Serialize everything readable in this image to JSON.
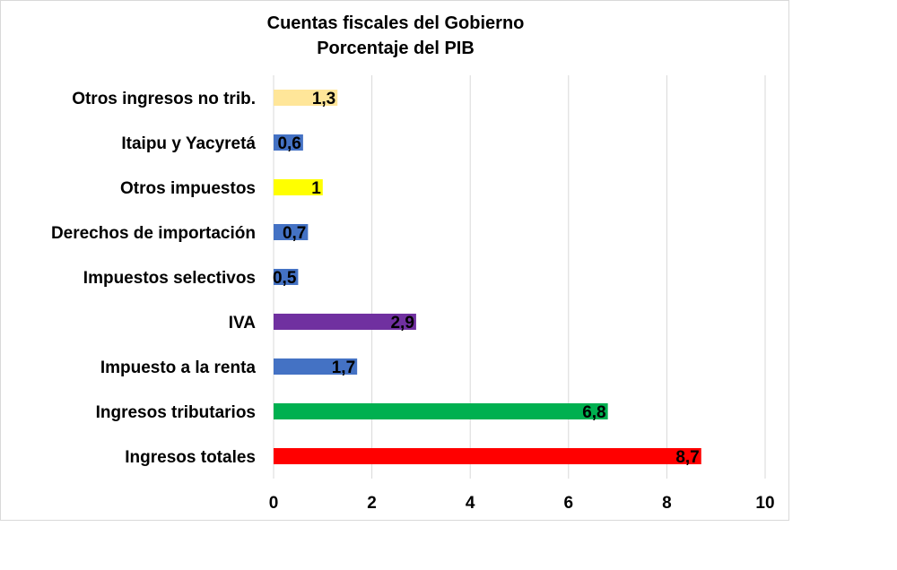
{
  "chart_data": {
    "type": "bar",
    "orientation": "horizontal",
    "title": [
      "Cuentas fiscales del Gobierno",
      "Porcentaje del PIB"
    ],
    "categories": [
      "Ingresos totales",
      "Ingresos tributarios",
      "Impuesto a la renta",
      "IVA",
      "Impuestos selectivos",
      "Derechos de importación",
      "Otros impuestos",
      "Itaipu y Yacyretá",
      "Otros ingresos no trib."
    ],
    "values": [
      8.7,
      6.8,
      1.7,
      2.9,
      0.5,
      0.7,
      1,
      0.6,
      1.3
    ],
    "data_labels": [
      "8,7",
      "6,8",
      "1,7",
      "2,9",
      "0,5",
      "0,7",
      "1",
      "0,6",
      "1,3"
    ],
    "colors": [
      "#ff0000",
      "#00b050",
      "#4472c4",
      "#7030a0",
      "#4472c4",
      "#4472c4",
      "#ffff00",
      "#4472c4",
      "#ffe699"
    ],
    "xlim": [
      0,
      10
    ],
    "xticks": [
      0,
      2,
      4,
      6,
      8,
      10
    ],
    "xlabel": "",
    "ylabel": "",
    "grid": "vertical",
    "legend": "none"
  }
}
